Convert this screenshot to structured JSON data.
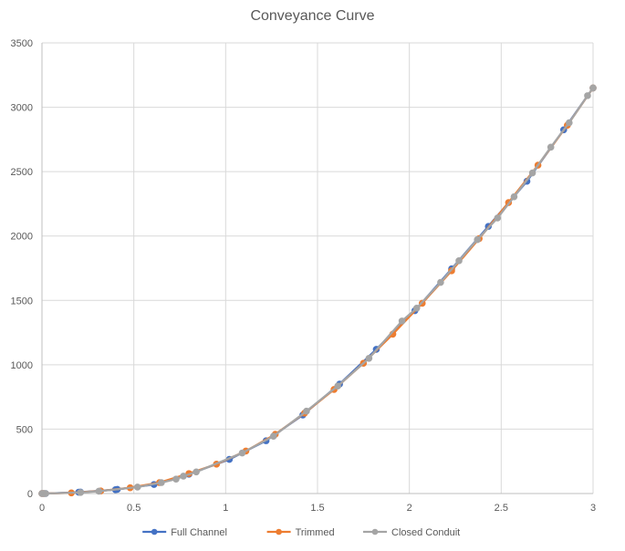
{
  "chart_data": {
    "type": "line",
    "title": "Conveyance Curve",
    "xlabel": "",
    "ylabel": "",
    "xlim": [
      0,
      3
    ],
    "ylim": [
      0,
      3500
    ],
    "x_ticks": [
      0,
      0.5,
      1,
      1.5,
      2,
      2.5,
      3
    ],
    "x_tick_labels": [
      "0",
      "0.5",
      "1",
      "1.5",
      "2",
      "2.5",
      "3"
    ],
    "y_ticks": [
      0,
      500,
      1000,
      1500,
      2000,
      2500,
      3000,
      3500
    ],
    "y_tick_labels": [
      "0",
      "500",
      "1000",
      "1500",
      "2000",
      "2500",
      "3000",
      "3500"
    ],
    "grid": true,
    "legend_position": "bottom",
    "series": [
      {
        "name": "Full Channel",
        "color": "#4472C4",
        "points": [
          [
            0,
            0
          ],
          [
            0.01,
            0
          ],
          [
            0.02,
            0
          ],
          [
            0.2,
            10
          ],
          [
            0.21,
            11
          ],
          [
            0.4,
            30
          ],
          [
            0.41,
            32
          ],
          [
            0.61,
            70
          ],
          [
            0.8,
            150
          ],
          [
            1.02,
            265
          ],
          [
            1.22,
            410
          ],
          [
            1.42,
            610
          ],
          [
            1.62,
            850
          ],
          [
            1.82,
            1120
          ],
          [
            2.03,
            1420
          ],
          [
            2.23,
            1745
          ],
          [
            2.43,
            2075
          ],
          [
            2.64,
            2425
          ],
          [
            2.84,
            2825
          ],
          [
            3.0,
            3150
          ]
        ]
      },
      {
        "name": "Trimmed",
        "color": "#ED7D31",
        "points": [
          [
            0,
            0
          ],
          [
            0.01,
            0
          ],
          [
            0.16,
            5
          ],
          [
            0.32,
            20
          ],
          [
            0.48,
            45
          ],
          [
            0.64,
            85
          ],
          [
            0.8,
            155
          ],
          [
            0.95,
            228
          ],
          [
            1.11,
            330
          ],
          [
            1.27,
            460
          ],
          [
            1.43,
            625
          ],
          [
            1.59,
            808
          ],
          [
            1.75,
            1012
          ],
          [
            1.91,
            1238
          ],
          [
            2.07,
            1478
          ],
          [
            2.23,
            1730
          ],
          [
            2.38,
            1980
          ],
          [
            2.54,
            2260
          ],
          [
            2.7,
            2550
          ],
          [
            2.86,
            2860
          ],
          [
            3.0,
            3150
          ]
        ]
      },
      {
        "name": "Closed Conduit",
        "color": "#A5A5A5",
        "points": [
          [
            0,
            0
          ],
          [
            0.01,
            0
          ],
          [
            0.02,
            0
          ],
          [
            0.21,
            8
          ],
          [
            0.31,
            18
          ],
          [
            0.52,
            50
          ],
          [
            0.65,
            85
          ],
          [
            0.73,
            112
          ],
          [
            0.77,
            135
          ],
          [
            0.84,
            168
          ],
          [
            1.09,
            315
          ],
          [
            1.26,
            445
          ],
          [
            1.44,
            640
          ],
          [
            1.61,
            835
          ],
          [
            1.78,
            1050
          ],
          [
            1.96,
            1340
          ],
          [
            2.04,
            1440
          ],
          [
            2.17,
            1640
          ],
          [
            2.27,
            1808
          ],
          [
            2.37,
            1972
          ],
          [
            2.48,
            2140
          ],
          [
            2.57,
            2305
          ],
          [
            2.67,
            2490
          ],
          [
            2.77,
            2690
          ],
          [
            2.87,
            2880
          ],
          [
            2.97,
            3090
          ],
          [
            3.0,
            3150
          ]
        ]
      }
    ]
  }
}
